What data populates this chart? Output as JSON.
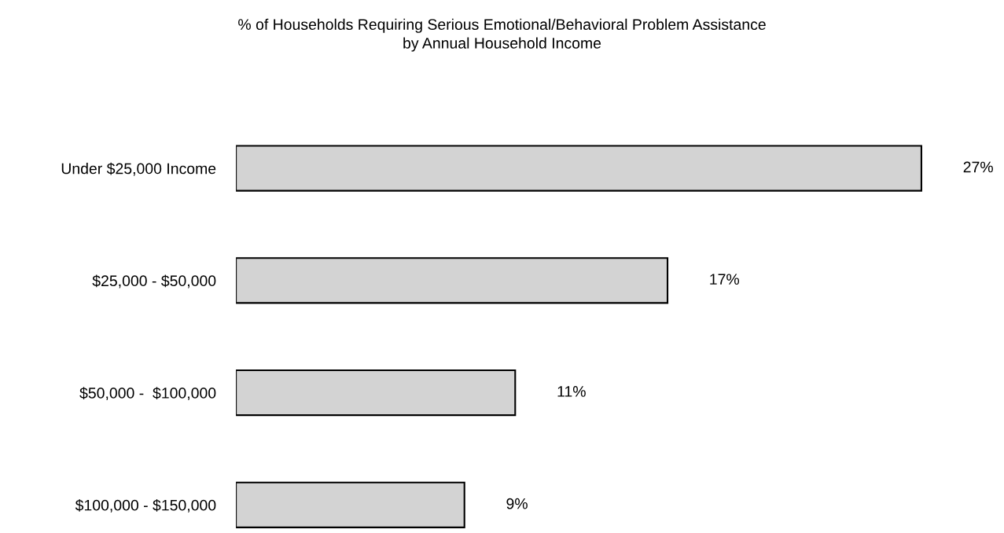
{
  "chart_data": {
    "type": "bar",
    "orientation": "horizontal",
    "title": "% of Households Requiring Serious Emotional/Behavioral Problem Assistance\nby Annual Household Income",
    "categories": [
      "Under $25,000 Income",
      "$25,000 - $50,000",
      "$50,000 -  $100,000",
      "$100,000 - $150,000"
    ],
    "values": [
      27,
      17,
      11,
      9
    ],
    "value_labels": [
      "27%",
      "17%",
      "11%",
      "9%"
    ],
    "color": "#d3d3d3",
    "grid": false
  }
}
